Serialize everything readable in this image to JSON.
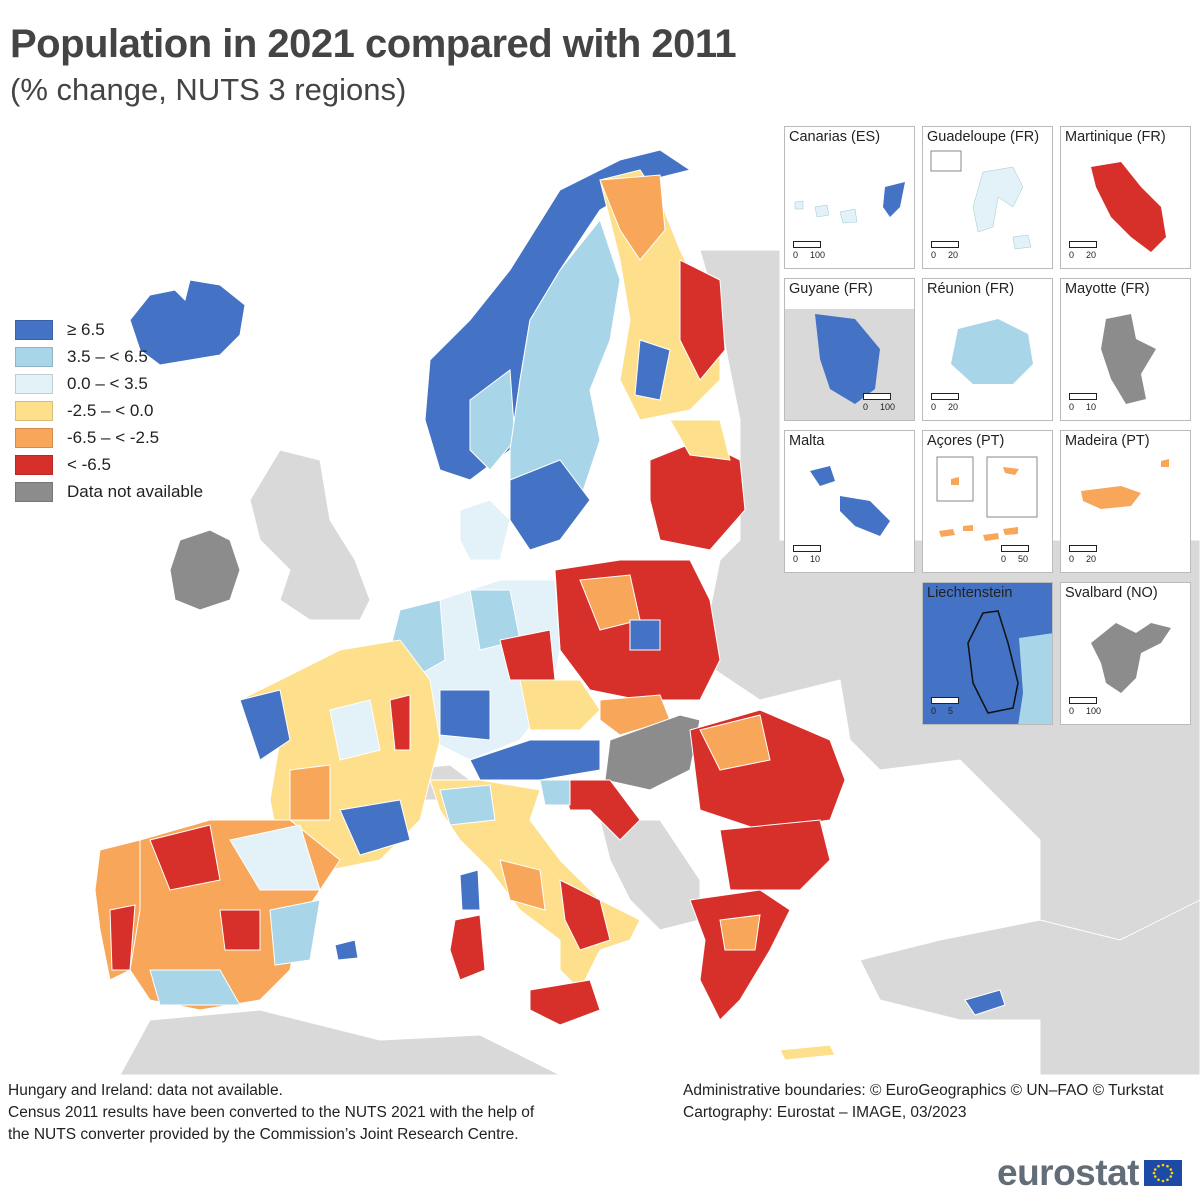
{
  "header": {
    "title": "Population in 2021 compared with 2011",
    "subtitle": "(% change, NUTS 3 regions)"
  },
  "colors": {
    "class_ge_6_5": "#4472c4",
    "class_3_5_6_5": "#a8d5e8",
    "class_0_3_5": "#e3f1f8",
    "class_m2_5_0": "#fddf8c",
    "class_m6_5_m2_5": "#f7a65a",
    "class_lt_m6_5": "#d7302a",
    "no_data": "#8c8c8c",
    "non_eu_land": "#d9d9d9",
    "sea": "#ffffff"
  },
  "legend": {
    "items": [
      {
        "label": "≥ 6.5",
        "color": "#4472c4"
      },
      {
        "label": "3.5 – < 6.5",
        "color": "#a8d5e8"
      },
      {
        "label": "0.0 – < 3.5",
        "color": "#e3f1f8"
      },
      {
        "label": "-2.5 – < 0.0",
        "color": "#fddf8c"
      },
      {
        "label": "-6.5 – < -2.5",
        "color": "#f7a65a"
      },
      {
        "label": "< -6.5",
        "color": "#d7302a"
      },
      {
        "label": "Data not available",
        "color": "#8c8c8c"
      }
    ]
  },
  "insets": [
    {
      "title": "Canarias (ES)",
      "scale": [
        "0",
        "100"
      ]
    },
    {
      "title": "Guadeloupe (FR)",
      "scale": [
        "0",
        "20"
      ]
    },
    {
      "title": "Martinique (FR)",
      "scale": [
        "0",
        "20"
      ]
    },
    {
      "title": "Guyane (FR)",
      "scale": [
        "0",
        "100"
      ]
    },
    {
      "title": "Réunion (FR)",
      "scale": [
        "0",
        "20"
      ]
    },
    {
      "title": "Mayotte (FR)",
      "scale": [
        "0",
        "10"
      ]
    },
    {
      "title": "Malta",
      "scale": [
        "0",
        "10"
      ]
    },
    {
      "title": "Açores (PT)",
      "scale": [
        "0",
        "50"
      ]
    },
    {
      "title": "Madeira (PT)",
      "scale": [
        "0",
        "20"
      ]
    },
    {
      "title": "Liechtenstein",
      "scale": [
        "0",
        "5"
      ]
    },
    {
      "title": "Svalbard (NO)",
      "scale": [
        "0",
        "100"
      ]
    }
  ],
  "footnote": {
    "line1": "Hungary and Ireland: data not available.",
    "line2": "Census 2011 results have been converted to the NUTS 2021 with the help of",
    "line3": "the NUTS converter provided by the Commission’s Joint Research Centre."
  },
  "credits": {
    "line1": "Administrative boundaries: © EuroGeographics © UN–FAO © Turkstat",
    "line2": "Cartography: Eurostat – IMAGE, 03/2023"
  },
  "logo": {
    "text": "eurostat"
  }
}
